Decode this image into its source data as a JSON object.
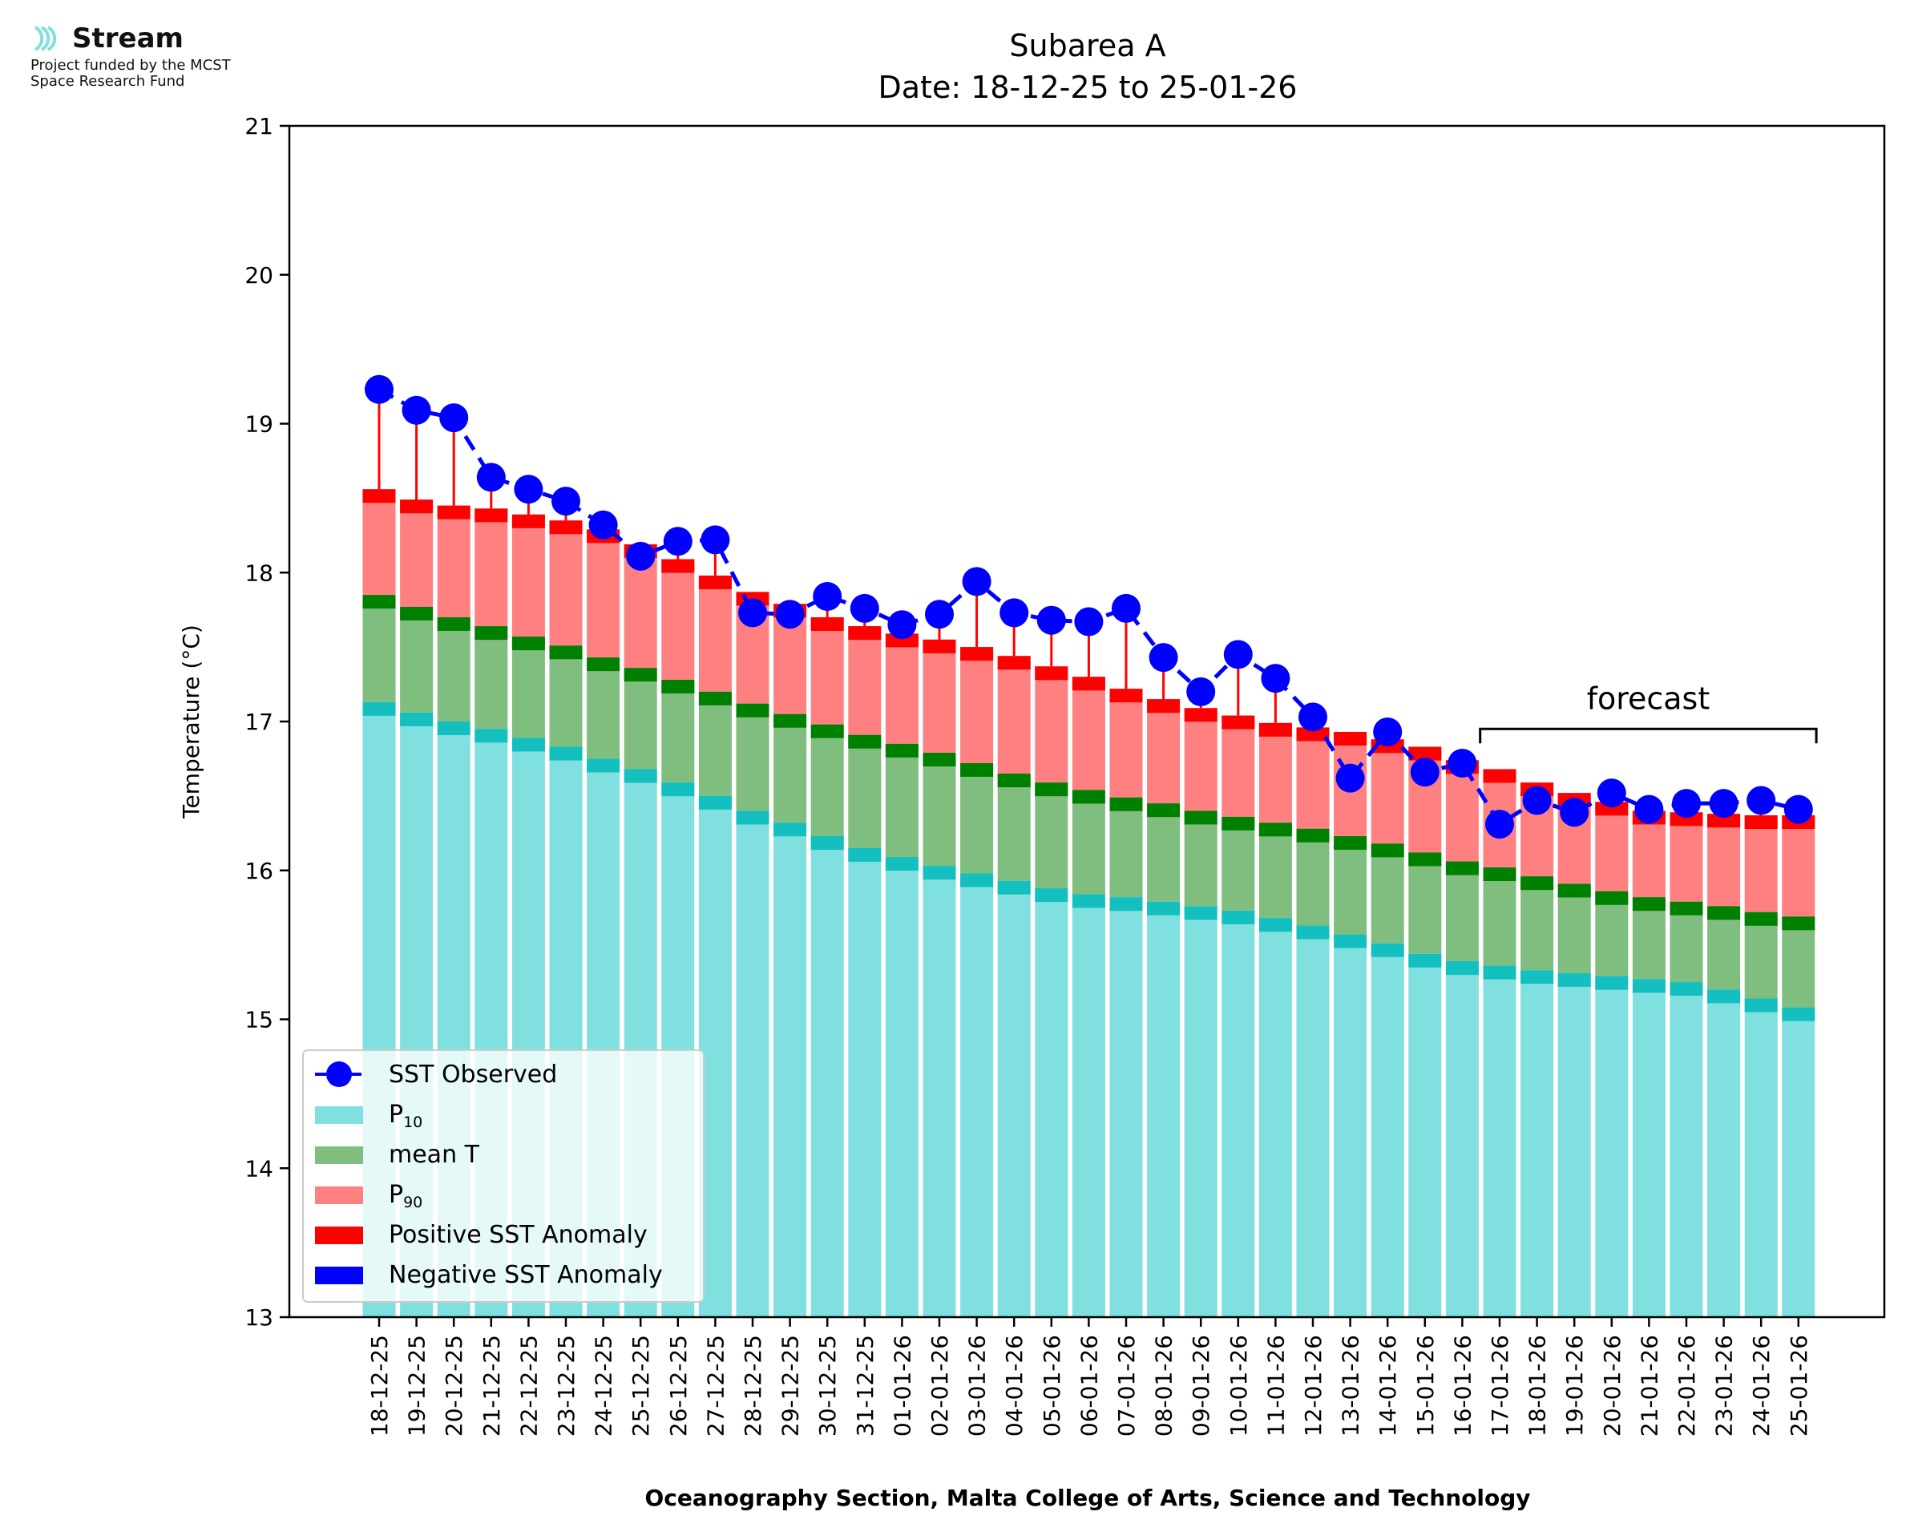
{
  "logo": {
    "name": "Stream",
    "line1": "Project funded by the MCST",
    "line2": "Space Research Fund"
  },
  "colors": {
    "p10": "#80dfdf",
    "p10_band": "#14bfbf",
    "mean": "#80be80",
    "mean_band": "#008000",
    "p90": "#ff8080",
    "p90_band": "#ff0000",
    "obs": "#0000ff",
    "positive_anomaly": "#ff0000",
    "negative_anomaly": "#0000ff"
  },
  "chart_data": {
    "type": "bar",
    "title": "Subarea A",
    "subtitle": "Date: 18-12-25 to 25-01-26",
    "ylabel": "Temperature (°C)",
    "xlabel": "Oceanography Section, Malta College of Arts, Science and Technology",
    "ylim": [
      13,
      21
    ],
    "yticks": [
      "13",
      "14",
      "15",
      "16",
      "17",
      "18",
      "19",
      "20",
      "21"
    ],
    "forecast_label": "forecast",
    "forecast_range": [
      "17-01-26",
      "25-01-26"
    ],
    "categories": [
      "18-12-25",
      "19-12-25",
      "20-12-25",
      "21-12-25",
      "22-12-25",
      "23-12-25",
      "24-12-25",
      "25-12-25",
      "26-12-25",
      "27-12-25",
      "28-12-25",
      "29-12-25",
      "30-12-25",
      "31-12-25",
      "01-01-26",
      "02-01-26",
      "03-01-26",
      "04-01-26",
      "05-01-26",
      "06-01-26",
      "07-01-26",
      "08-01-26",
      "09-01-26",
      "10-01-26",
      "11-01-26",
      "12-01-26",
      "13-01-26",
      "14-01-26",
      "15-01-26",
      "16-01-26",
      "17-01-26",
      "18-01-26",
      "19-01-26",
      "20-01-26",
      "21-01-26",
      "22-01-26",
      "23-01-26",
      "24-01-26",
      "25-01-26"
    ],
    "series": [
      {
        "name": "P10",
        "values": [
          17.13,
          17.06,
          17.0,
          16.95,
          16.89,
          16.83,
          16.75,
          16.68,
          16.59,
          16.5,
          16.4,
          16.32,
          16.23,
          16.15,
          16.09,
          16.03,
          15.98,
          15.93,
          15.88,
          15.84,
          15.82,
          15.79,
          15.76,
          15.73,
          15.68,
          15.63,
          15.57,
          15.51,
          15.44,
          15.39,
          15.36,
          15.33,
          15.31,
          15.29,
          15.27,
          15.25,
          15.2,
          15.14,
          15.08
        ]
      },
      {
        "name": "mean T",
        "values": [
          17.85,
          17.77,
          17.7,
          17.64,
          17.57,
          17.51,
          17.43,
          17.36,
          17.28,
          17.2,
          17.12,
          17.05,
          16.98,
          16.91,
          16.85,
          16.79,
          16.72,
          16.65,
          16.59,
          16.54,
          16.49,
          16.45,
          16.4,
          16.36,
          16.32,
          16.28,
          16.23,
          16.18,
          16.12,
          16.06,
          16.02,
          15.96,
          15.91,
          15.86,
          15.82,
          15.79,
          15.76,
          15.72,
          15.69
        ]
      },
      {
        "name": "P90",
        "values": [
          18.56,
          18.49,
          18.45,
          18.43,
          18.39,
          18.35,
          18.29,
          18.19,
          18.09,
          17.98,
          17.87,
          17.79,
          17.7,
          17.64,
          17.59,
          17.55,
          17.5,
          17.44,
          17.37,
          17.3,
          17.22,
          17.15,
          17.09,
          17.04,
          16.99,
          16.96,
          16.93,
          16.88,
          16.83,
          16.74,
          16.68,
          16.59,
          16.52,
          16.46,
          16.4,
          16.39,
          16.38,
          16.37,
          16.37
        ]
      },
      {
        "name": "SST Observed",
        "values": [
          19.23,
          19.09,
          19.04,
          18.64,
          18.56,
          18.48,
          18.32,
          18.11,
          18.21,
          18.22,
          17.73,
          17.72,
          17.84,
          17.76,
          17.65,
          17.72,
          17.94,
          17.73,
          17.68,
          17.67,
          17.76,
          17.43,
          17.2,
          17.45,
          17.29,
          17.03,
          16.62,
          16.93,
          16.66,
          16.72,
          16.31,
          16.47,
          16.39,
          16.52,
          16.41,
          16.45,
          16.45,
          16.47,
          16.41
        ]
      }
    ],
    "legend": {
      "position": "lower-left",
      "items": [
        "SST Observed",
        "P10",
        "mean T",
        "P90",
        "Positive SST Anomaly",
        "Negative SST Anomaly"
      ]
    },
    "grid": false
  }
}
